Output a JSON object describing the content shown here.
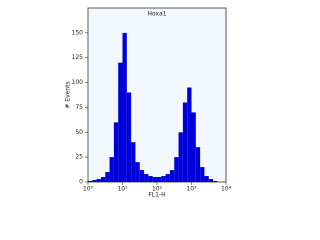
{
  "chart_data": {
    "type": "histogram",
    "title": "Hoxa1",
    "x_label": "FL1-H",
    "y_label": "# Events",
    "bins": [
      1,
      1.334,
      1.778,
      2.371,
      3.162,
      4.217,
      5.623,
      7.499,
      10,
      13.34,
      17.78,
      23.71,
      31.62,
      42.17,
      56.23,
      74.99,
      100,
      133.4,
      177.8,
      237.1,
      316.2,
      421.7,
      562.3,
      749.9,
      1000,
      1334,
      1778,
      2371,
      3162,
      4217,
      5623,
      7499,
      10000
    ],
    "counts": [
      1,
      2,
      3,
      5,
      10,
      25,
      60,
      120,
      150,
      90,
      40,
      20,
      12,
      8,
      6,
      5,
      5,
      6,
      8,
      12,
      25,
      50,
      80,
      95,
      70,
      35,
      15,
      6,
      3,
      1,
      0,
      0
    ],
    "color": "#0000dd",
    "xscale": "log",
    "xlim": [
      1,
      10000
    ],
    "xticks": [
      {
        "value": 1,
        "label": "10⁰"
      },
      {
        "value": 10,
        "label": "10¹"
      },
      {
        "value": 100,
        "label": "10²"
      },
      {
        "value": 1000,
        "label": "10³"
      },
      {
        "value": 10000,
        "label": "10⁴"
      }
    ],
    "ylim": [
      0,
      175
    ],
    "yticks": [
      0,
      25,
      50,
      75,
      100,
      125,
      150
    ]
  }
}
